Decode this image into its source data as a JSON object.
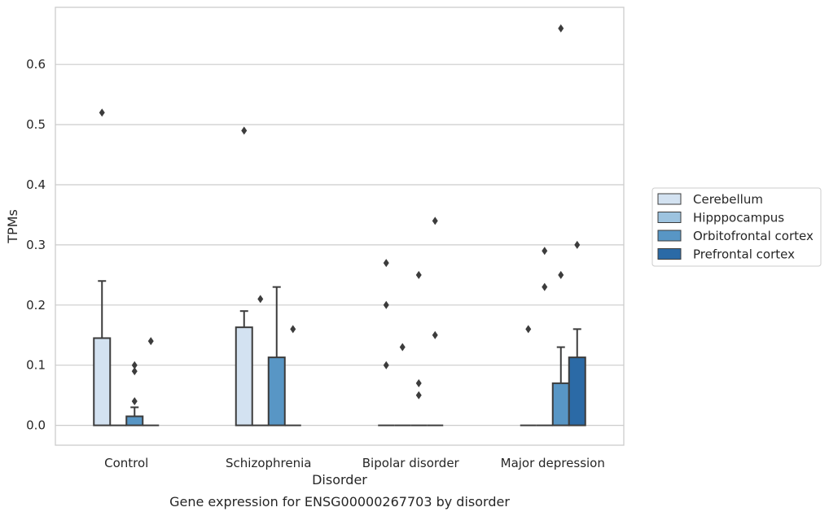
{
  "chart_data": {
    "type": "bar",
    "title": "",
    "caption": "Gene expression for ENSG00000267703 by disorder",
    "xlabel": "Disorder",
    "ylabel": "TPMs",
    "categories": [
      "Control",
      "Schizophrenia",
      "Bipolar disorder",
      "Major depression"
    ],
    "ylim": [
      -0.033,
      0.695
    ],
    "yticks": [
      0.0,
      0.1,
      0.2,
      0.3,
      0.4,
      0.5,
      0.6
    ],
    "ytick_labels": [
      "0.0",
      "0.1",
      "0.2",
      "0.3",
      "0.4",
      "0.5",
      "0.6"
    ],
    "grid": "horizontal",
    "legend_position": "right",
    "series": [
      {
        "name": "Cerebellum",
        "color": "#d3e2f1",
        "values": [
          0.145,
          0.163,
          0.0,
          0.0
        ],
        "error_upper": [
          0.24,
          0.19,
          null,
          null
        ],
        "outliers": [
          [
            0.52
          ],
          [
            0.49
          ],
          [
            0.1,
            0.2,
            0.27
          ],
          [
            0.16
          ]
        ]
      },
      {
        "name": "Hipppocampus",
        "color": "#9dc3df",
        "values": [
          0.0,
          0.0,
          0.0,
          0.0
        ],
        "error_upper": [
          null,
          null,
          null,
          null
        ],
        "outliers": [
          [],
          [
            0.21
          ],
          [
            0.13
          ],
          [
            0.23,
            0.29
          ]
        ]
      },
      {
        "name": "Orbitofrontal cortex",
        "color": "#5896c5",
        "values": [
          0.015,
          0.113,
          0.0,
          0.07
        ],
        "error_upper": [
          0.03,
          0.23,
          null,
          0.13
        ],
        "outliers": [
          [
            0.04,
            0.09,
            0.1
          ],
          [],
          [
            0.05,
            0.07,
            0.25
          ],
          [
            0.25,
            0.66
          ]
        ]
      },
      {
        "name": "Prefrontal cortex",
        "color": "#2b6aa6",
        "values": [
          0.0,
          0.0,
          0.0,
          0.113
        ],
        "error_upper": [
          null,
          null,
          null,
          0.16
        ],
        "outliers": [
          [
            0.14
          ],
          [
            0.16
          ],
          [
            0.15,
            0.34
          ],
          [
            0.3
          ]
        ]
      }
    ]
  }
}
